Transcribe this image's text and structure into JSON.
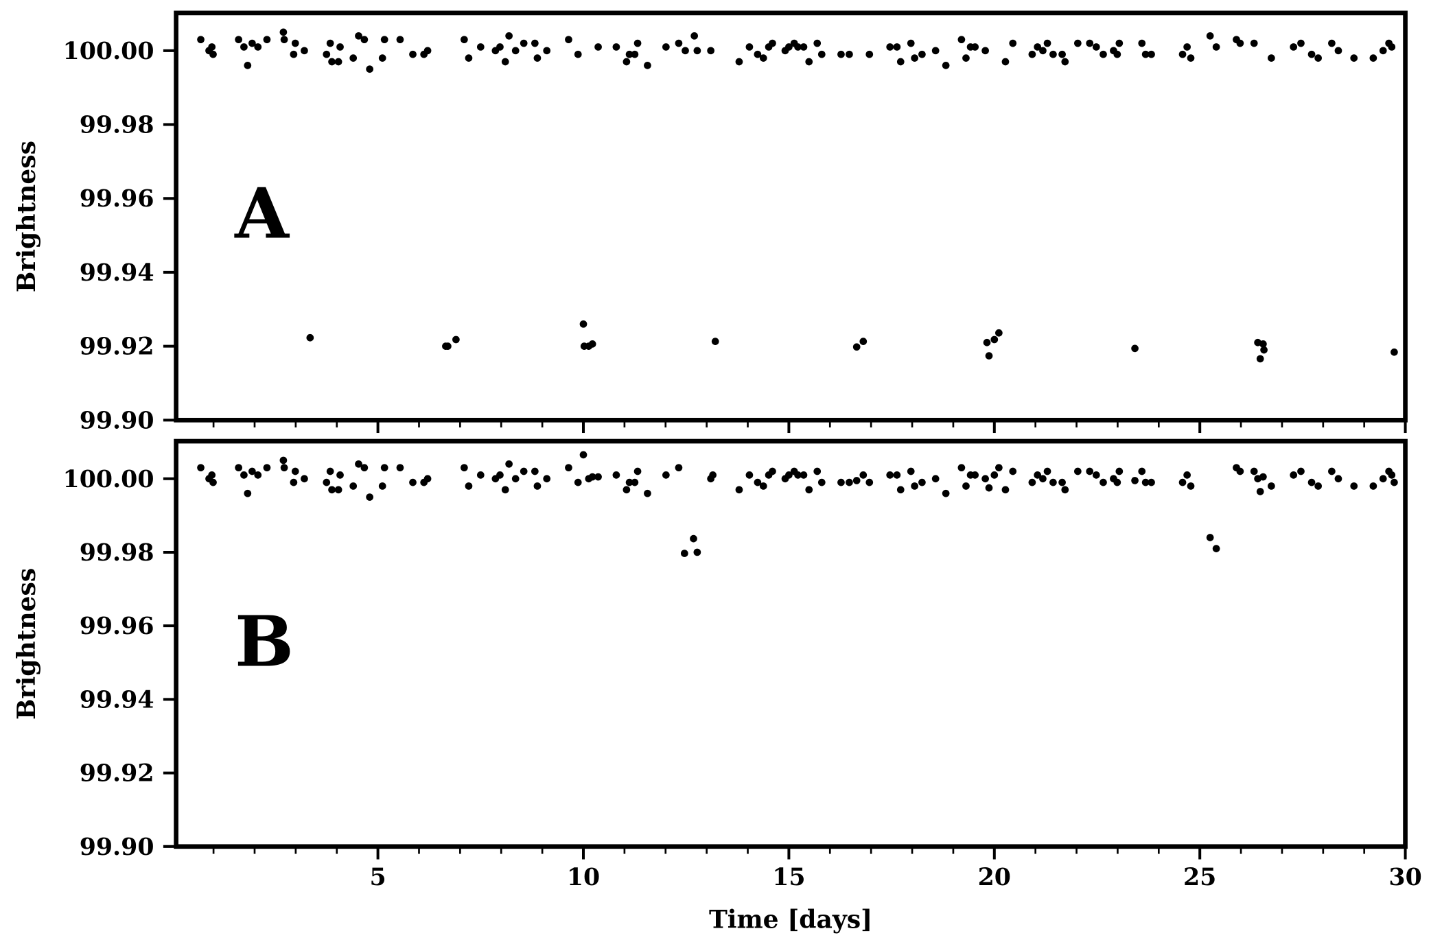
{
  "chart_data": [
    {
      "type": "scatter",
      "panel_label": "A",
      "ylabel": "Brightness",
      "color": "#000000",
      "xlim": [
        0.09,
        30
      ],
      "ylim": [
        99.9,
        100.0102
      ],
      "xticks": [
        5,
        10,
        15,
        20,
        25,
        30
      ],
      "x_minor_ticks": [
        1,
        2,
        3,
        4,
        6,
        7,
        8,
        9,
        11,
        12,
        13,
        14,
        16,
        17,
        18,
        19,
        21,
        22,
        23,
        24,
        26,
        27,
        28,
        29
      ],
      "yticks": [
        {
          "value": 99.9,
          "label": "99.90"
        },
        99.92,
        99.94,
        99.96,
        99.98,
        {
          "value": 100,
          "label": "100.00"
        }
      ],
      "x": [
        0.69,
        0.89,
        0.99,
        0.96,
        1.61,
        1.74,
        1.83,
        1.94,
        2.08,
        2.3,
        2.7,
        2.72,
        2.95,
        2.99,
        3.21,
        3.75,
        3.84,
        3.88,
        4.04,
        4.08,
        4.4,
        4.53,
        4.67,
        4.8,
        5.11,
        5.16,
        5.54,
        5.85,
        6.12,
        6.21,
        7.1,
        7.21,
        7.5,
        7.86,
        7.97,
        8.1,
        8.19,
        8.35,
        8.55,
        8.82,
        8.88,
        9.11,
        9.64,
        9.87,
        10.36,
        10.8,
        11.05,
        11.12,
        11.25,
        11.32,
        11.56,
        12.01,
        12.32,
        12.48,
        12.7,
        12.77,
        13.1,
        13.79,
        14.04,
        14.24,
        14.38,
        14.51,
        14.6,
        14.91,
        15.0,
        15.13,
        15.22,
        15.36,
        15.49,
        15.69,
        15.8,
        16.27,
        16.47,
        16.96,
        17.46,
        17.63,
        17.72,
        17.97,
        18.06,
        18.24,
        18.57,
        18.82,
        19.2,
        19.31,
        19.42,
        19.53,
        19.78,
        20.27,
        20.45,
        20.92,
        21.05,
        21.18,
        21.29,
        21.43,
        21.65,
        21.72,
        22.03,
        22.32,
        22.48,
        22.65,
        22.9,
        22.99,
        23.04,
        23.59,
        23.68,
        23.82,
        24.58,
        24.69,
        24.78,
        25.25,
        25.4,
        25.89,
        25.98,
        26.32,
        26.74,
        27.28,
        27.46,
        27.72,
        27.88,
        28.21,
        28.37,
        28.75,
        29.22,
        29.46,
        29.6,
        29.67,
        3.35,
        6.65,
        6.7,
        6.9,
        10.0,
        10.02,
        10.13,
        10.22,
        13.21,
        16.65,
        16.81,
        19.82,
        19.87,
        20.0,
        20.11,
        23.42,
        26.41,
        26.54,
        26.47,
        26.56,
        29.73
      ],
      "values": [
        100.003,
        100.0,
        99.999,
        100.001,
        100.003,
        100.001,
        99.996,
        100.002,
        100.001,
        100.003,
        100.005,
        100.003,
        99.999,
        100.002,
        100.0,
        99.999,
        100.002,
        99.997,
        99.997,
        100.001,
        99.998,
        100.004,
        100.003,
        99.995,
        99.998,
        100.003,
        100.003,
        99.999,
        99.999,
        100.0,
        100.003,
        99.998,
        100.001,
        100.0,
        100.001,
        99.997,
        100.004,
        100.0,
        100.002,
        100.002,
        99.998,
        100.0,
        100.003,
        99.999,
        100.001,
        100.001,
        99.997,
        99.999,
        99.999,
        100.002,
        99.996,
        100.001,
        100.002,
        100.0,
        100.004,
        100.0,
        100.0,
        99.997,
        100.001,
        99.999,
        99.998,
        100.001,
        100.002,
        100.0,
        100.001,
        100.002,
        100.001,
        100.001,
        99.997,
        100.002,
        99.999,
        99.999,
        99.999,
        99.999,
        100.001,
        100.001,
        99.997,
        100.002,
        99.998,
        99.999,
        100.0,
        99.996,
        100.003,
        99.998,
        100.001,
        100.001,
        100.0,
        99.997,
        100.002,
        99.999,
        100.001,
        100.0,
        100.002,
        99.999,
        99.999,
        99.997,
        100.002,
        100.002,
        100.001,
        99.999,
        100.0,
        99.999,
        100.002,
        100.002,
        99.999,
        99.999,
        99.999,
        100.001,
        99.998,
        100.004,
        100.001,
        100.003,
        100.002,
        100.002,
        99.998,
        100.001,
        100.002,
        99.999,
        99.998,
        100.002,
        100.0,
        99.998,
        99.998,
        100.0,
        100.002,
        100.001,
        99.9223,
        99.92,
        99.92,
        99.9218,
        99.926,
        99.92,
        99.92,
        99.9206,
        99.9213,
        99.9198,
        99.9213,
        99.921,
        99.9174,
        99.9218,
        99.9236,
        99.9194,
        99.921,
        99.9206,
        99.9166,
        99.919,
        99.9184
      ]
    },
    {
      "type": "scatter",
      "panel_label": "B",
      "ylabel": "Brightness",
      "xlabel": "Time [days]",
      "color": "#000000",
      "xlim": [
        0.09,
        30
      ],
      "ylim": [
        99.9,
        100.0102
      ],
      "xticks": [
        5,
        10,
        15,
        20,
        25,
        30
      ],
      "x_minor_ticks": [
        1,
        2,
        3,
        4,
        6,
        7,
        8,
        9,
        11,
        12,
        13,
        14,
        16,
        17,
        18,
        19,
        21,
        22,
        23,
        24,
        26,
        27,
        28,
        29
      ],
      "yticks": [
        {
          "value": 99.9,
          "label": "99.90"
        },
        99.92,
        99.94,
        99.96,
        99.98,
        {
          "value": 100,
          "label": "100.00"
        }
      ],
      "x": [
        0.69,
        0.89,
        0.99,
        0.96,
        1.61,
        1.74,
        1.83,
        1.94,
        2.08,
        2.3,
        2.7,
        2.72,
        2.95,
        2.99,
        3.21,
        3.75,
        3.84,
        3.88,
        4.04,
        4.08,
        4.4,
        4.53,
        4.67,
        4.8,
        5.11,
        5.16,
        5.54,
        5.85,
        6.12,
        6.21,
        7.1,
        7.21,
        7.5,
        7.86,
        7.97,
        8.1,
        8.19,
        8.35,
        8.55,
        8.82,
        8.88,
        9.11,
        9.64,
        9.87,
        10.0,
        10.13,
        10.22,
        10.36,
        10.8,
        11.05,
        11.12,
        11.25,
        11.32,
        11.56,
        12.01,
        12.32,
        13.1,
        13.15,
        13.79,
        14.04,
        14.24,
        14.38,
        14.51,
        14.6,
        14.91,
        15.0,
        15.13,
        15.22,
        15.36,
        15.49,
        15.69,
        15.8,
        16.27,
        16.47,
        16.65,
        16.81,
        16.96,
        17.46,
        17.63,
        17.72,
        17.97,
        18.06,
        18.24,
        18.57,
        18.82,
        19.2,
        19.31,
        19.42,
        19.53,
        19.78,
        19.87,
        20.0,
        20.11,
        20.27,
        20.45,
        20.92,
        21.05,
        21.18,
        21.29,
        21.43,
        21.65,
        21.72,
        22.03,
        22.32,
        22.48,
        22.65,
        22.9,
        22.99,
        23.04,
        23.42,
        23.59,
        23.68,
        23.82,
        24.58,
        24.69,
        24.78,
        25.89,
        25.98,
        26.32,
        26.41,
        26.47,
        26.54,
        26.74,
        27.28,
        27.46,
        27.72,
        27.88,
        28.21,
        28.37,
        28.75,
        29.22,
        29.46,
        29.6,
        29.67,
        29.73,
        12.46,
        12.68,
        12.77,
        25.25,
        25.4
      ],
      "values": [
        100.003,
        100.0,
        99.999,
        100.001,
        100.003,
        100.001,
        99.996,
        100.002,
        100.001,
        100.003,
        100.005,
        100.003,
        99.999,
        100.002,
        100.0,
        99.999,
        100.002,
        99.997,
        99.997,
        100.001,
        99.998,
        100.004,
        100.003,
        99.995,
        99.998,
        100.003,
        100.003,
        99.999,
        99.999,
        100.0,
        100.003,
        99.998,
        100.001,
        100.0,
        100.001,
        99.997,
        100.004,
        100.0,
        100.002,
        100.002,
        99.998,
        100.0,
        100.003,
        99.999,
        100.0065,
        100.0,
        100.0005,
        100.0005,
        100.001,
        99.997,
        99.999,
        99.999,
        100.002,
        99.996,
        100.001,
        100.003,
        100.0,
        100.001,
        99.997,
        100.001,
        99.999,
        99.998,
        100.001,
        100.002,
        100.0,
        100.001,
        100.002,
        100.001,
        100.001,
        99.997,
        100.002,
        99.999,
        99.999,
        99.999,
        99.9995,
        100.001,
        99.999,
        100.001,
        100.001,
        99.997,
        100.002,
        99.998,
        99.999,
        100.0,
        99.996,
        100.003,
        99.998,
        100.001,
        100.001,
        100.0,
        99.9975,
        100.001,
        100.003,
        99.997,
        100.002,
        99.999,
        100.001,
        100.0,
        100.002,
        99.999,
        99.999,
        99.997,
        100.002,
        100.002,
        100.001,
        99.999,
        100.0,
        99.999,
        100.002,
        99.9995,
        100.002,
        99.999,
        99.999,
        99.999,
        100.001,
        99.998,
        100.003,
        100.002,
        100.002,
        100.0,
        99.9965,
        100.0005,
        99.998,
        100.001,
        100.002,
        99.999,
        99.998,
        100.002,
        100.0,
        99.998,
        99.998,
        100.0,
        100.002,
        100.001,
        99.999,
        99.9797,
        99.9837,
        99.98,
        99.984,
        99.981
      ]
    }
  ]
}
